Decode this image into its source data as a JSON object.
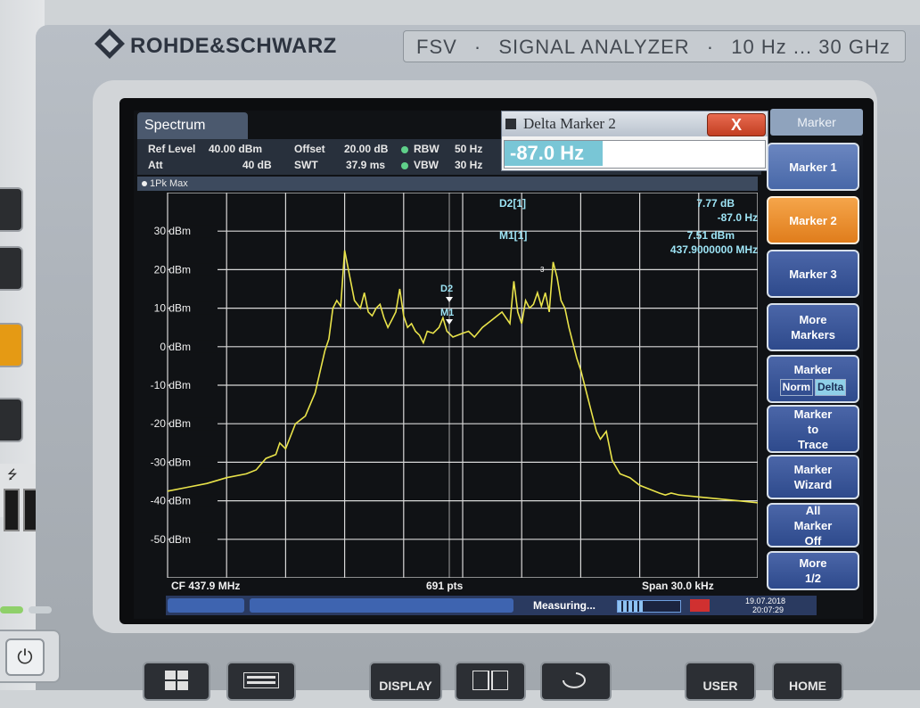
{
  "brand": "ROHDE&SCHWARZ",
  "model": {
    "name": "FSV",
    "type": "SIGNAL ANALYZER",
    "range": "10 Hz ... 30 GHz"
  },
  "tab": {
    "label": "Spectrum"
  },
  "settings": {
    "ref_level_label": "Ref Level",
    "ref_level_value": "40.00 dBm",
    "att_label": "Att",
    "att_value": "40 dB",
    "offset_label": "Offset",
    "offset_value": "20.00 dB",
    "swt_label": "SWT",
    "swt_value": "37.9 ms",
    "rbw_label": "RBW",
    "rbw_value": "50 Hz",
    "vbw_label": "VBW",
    "vbw_value": "30 Hz"
  },
  "trace_label": "1Pk Max",
  "markers": {
    "d2_label": "D2[1]",
    "d2_level": "7.77 dB",
    "d2_offset": "-87.0 Hz",
    "m1_label": "M1[1]",
    "m1_level": "7.51 dBm",
    "m1_freq": "437.9000000 MHz",
    "plot_d2": "D2",
    "plot_m1": "M1",
    "plot_m3": "3"
  },
  "dialog": {
    "title": "Delta Marker 2",
    "close": "X",
    "value": "-87.0 Hz"
  },
  "footer": {
    "cf": "CF 437.9 MHz",
    "pts": "691 pts",
    "span": "Span 30.0 kHz"
  },
  "status": {
    "text": "Measuring...",
    "date": "19.07.2018",
    "time": "20:07:29"
  },
  "softkeys": {
    "title": "Marker",
    "marker1": "Marker 1",
    "marker2": "Marker 2",
    "marker3": "Marker 3",
    "more_markers_1": "More",
    "more_markers_2": "Markers",
    "marker_norm_label": "Marker",
    "norm": "Norm",
    "delta": "Delta",
    "marker_to_trace_1": "Marker",
    "marker_to_trace_2": "to",
    "marker_to_trace_3": "Trace",
    "marker_wizard_1": "Marker",
    "marker_wizard_2": "Wizard",
    "all_marker_off_1": "All",
    "all_marker_off_2": "Marker",
    "all_marker_off_3": "Off",
    "more_1": "More",
    "more_2": "1/2"
  },
  "hard_keys": {
    "display": "DISPLAY",
    "user": "USER",
    "home": "HOME"
  },
  "chart_data": {
    "type": "line",
    "ylabels": [
      "30 dBm",
      "20 dBm",
      "10 dBm",
      "0 dBm",
      "-10 dBm",
      "-20 dBm",
      "-30 dBm",
      "-40 dBm",
      "-50 dBm"
    ],
    "ylim": [
      -60,
      40
    ],
    "xlim": [
      -15,
      15
    ],
    "x_unit": "kHz offset from CF",
    "series": [
      {
        "color": "#e9e34a",
        "x": [
          -15.0,
          -14.0,
          -13.0,
          -12.0,
          -11.0,
          -10.5,
          -10.0,
          -9.5,
          -9.3,
          -9.0,
          -8.5,
          -8.0,
          -7.5,
          -7.0,
          -6.8,
          -6.6,
          -6.4,
          -6.2,
          -6.0,
          -5.5,
          -5.2,
          -5.0,
          -4.8,
          -4.6,
          -4.4,
          -4.2,
          -4.0,
          -3.8,
          -3.6,
          -3.4,
          -3.2,
          -3.0,
          -2.8,
          -2.6,
          -2.4,
          -2.2,
          -2.0,
          -1.8,
          -1.5,
          -1.2,
          -1.0,
          -0.8,
          -0.5,
          0.0,
          0.3,
          0.6,
          1.0,
          1.5,
          2.0,
          2.4,
          2.6,
          2.8,
          3.0,
          3.2,
          3.4,
          3.6,
          3.8,
          4.0,
          4.2,
          4.4,
          4.6,
          4.8,
          5.0,
          5.2,
          5.4,
          5.6,
          5.8,
          6.0,
          6.2,
          6.4,
          6.6,
          6.8,
          7.0,
          7.3,
          7.6,
          8.0,
          8.5,
          9.0,
          9.5,
          10.0,
          10.3,
          10.6,
          11.0,
          12.0,
          13.0,
          14.0,
          15.0
        ],
        "y": [
          -37.5,
          -36.5,
          -35.5,
          -34.0,
          -33.0,
          -32.0,
          -29.0,
          -28.0,
          -25.0,
          -26.5,
          -20.0,
          -18.0,
          -12.0,
          -1.0,
          2.0,
          10.0,
          12.0,
          10.5,
          25.0,
          12.0,
          10.0,
          14.0,
          9.0,
          8.0,
          10.0,
          11.0,
          7.5,
          5.0,
          7.0,
          9.0,
          15.0,
          8.0,
          5.0,
          6.0,
          4.0,
          3.0,
          1.0,
          4.0,
          3.5,
          5.0,
          7.5,
          4.0,
          2.5,
          3.5,
          4.0,
          2.5,
          5.0,
          7.0,
          9.0,
          6.0,
          17.0,
          9.0,
          6.0,
          12.0,
          10.0,
          11.0,
          14.0,
          10.5,
          14.0,
          9.0,
          22.0,
          18.0,
          12.0,
          10.0,
          5.0,
          1.0,
          -3.0,
          -6.0,
          -10.0,
          -14.0,
          -18.0,
          -22.0,
          -24.0,
          -22.0,
          -29.5,
          -33.0,
          -34.0,
          -36.0,
          -37.0,
          -38.0,
          -38.5,
          -38.0,
          -38.5,
          -39.0,
          -39.5,
          -40.0,
          -40.5
        ]
      }
    ]
  }
}
